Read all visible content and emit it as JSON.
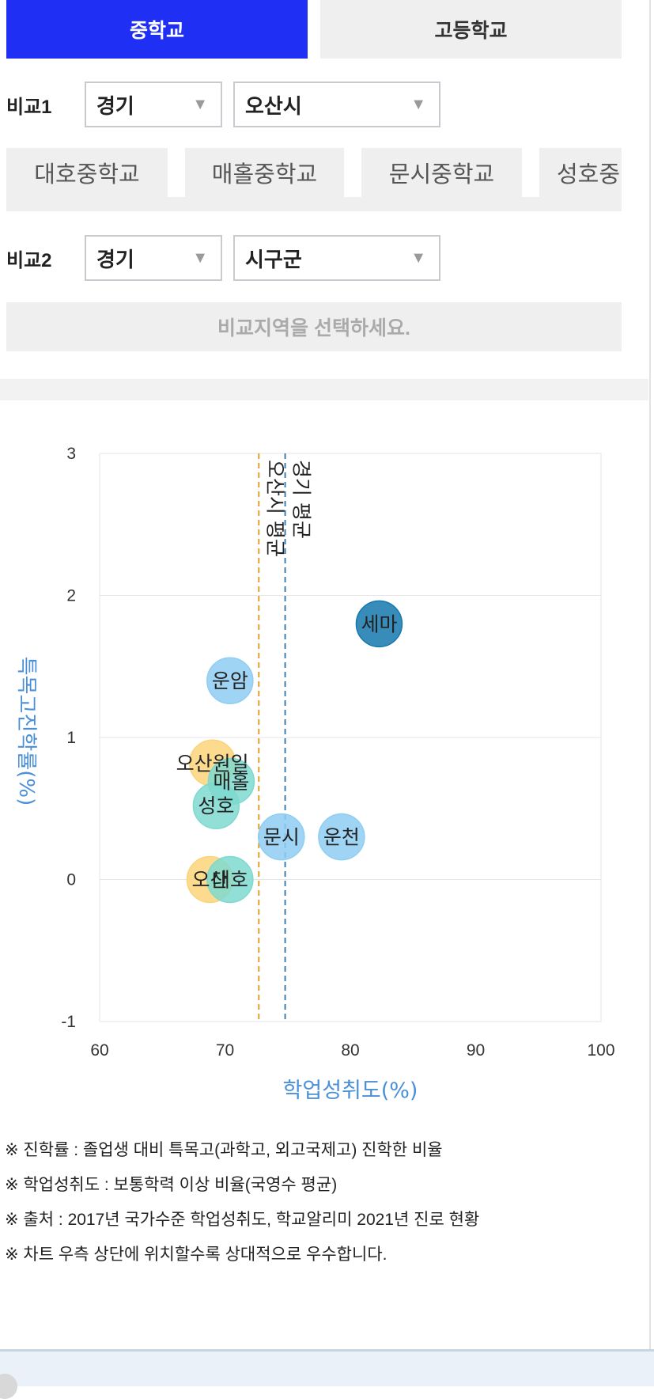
{
  "level_tabs": [
    {
      "label": "중학교",
      "active": true
    },
    {
      "label": "고등학교",
      "active": false
    }
  ],
  "compare1": {
    "label": "비교1",
    "region": "경기",
    "district": "오산시"
  },
  "school_chips": [
    "대호중학교",
    "매홀중학교",
    "문시중학교",
    "성호중"
  ],
  "compare2": {
    "label": "비교2",
    "region": "경기",
    "district": "시구군"
  },
  "compare2_notice": "비교지역을 선택하세요.",
  "chart_data": {
    "type": "scatter",
    "xlabel": "학업성취도(%)",
    "ylabel": "특목고진학률(%)",
    "xlim": [
      60,
      100
    ],
    "ylim": [
      -1,
      3
    ],
    "xticks": [
      "60",
      "70",
      "80",
      "90",
      "100"
    ],
    "yticks": [
      "-1",
      "0",
      "1",
      "2",
      "3"
    ],
    "grid": true,
    "reference_lines": [
      {
        "label": "오산시 평균",
        "x": 72.7,
        "color": "#e0a02c"
      },
      {
        "label": "경기 평균",
        "x": 74.8,
        "color": "#3d7fb1"
      }
    ],
    "points": [
      {
        "label": "세마",
        "x": 82.3,
        "y": 1.8,
        "color": "#1578ad"
      },
      {
        "label": "운암",
        "x": 70.4,
        "y": 1.4,
        "color": "#8fcdf2"
      },
      {
        "label": "오산원일",
        "x": 69.0,
        "y": 0.82,
        "color": "#fbd37a"
      },
      {
        "label": "매홀",
        "x": 70.5,
        "y": 0.69,
        "color": "#7ed9cf"
      },
      {
        "label": "성호",
        "x": 69.3,
        "y": 0.52,
        "color": "#7ed9cf"
      },
      {
        "label": "문시",
        "x": 74.5,
        "y": 0.3,
        "color": "#8fcdf2"
      },
      {
        "label": "운천",
        "x": 79.3,
        "y": 0.3,
        "color": "#8fcdf2"
      },
      {
        "label": "오산",
        "x": 68.8,
        "y": 0.0,
        "color": "#fbd37a"
      },
      {
        "label": "대호",
        "x": 70.4,
        "y": 0.0,
        "color": "#7ed9cf"
      }
    ]
  },
  "notes": [
    "※ 진학률 : 졸업생 대비 특목고(과학고, 외고국제고) 진학한 비율",
    "※ 학업성취도 : 보통학력 이상 비율(국영수 평균)",
    "※ 출처 : 2017년 국가수준 학업성취도, 학교알리미 2021년 진로 현황",
    "※ 차트 우측 상단에 위치할수록 상대적으로 우수합니다."
  ]
}
